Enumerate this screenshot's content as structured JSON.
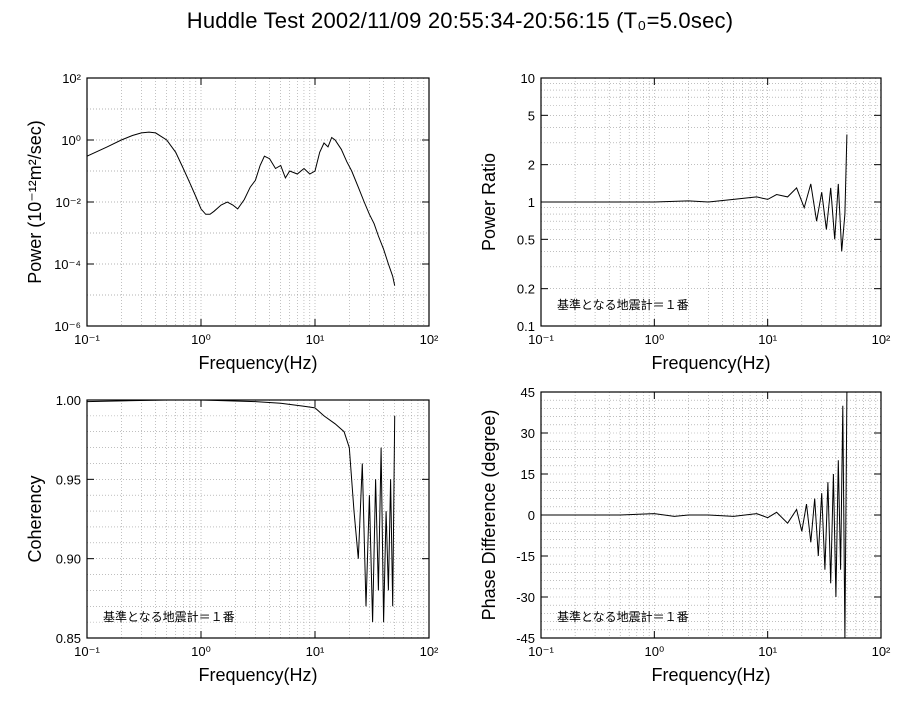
{
  "title": "Huddle Test  2002/11/09  20:55:34-20:56:15 (T₀=5.0sec)",
  "chart_data": [
    {
      "type": "line",
      "name": "power-spectrum",
      "xlabel": "Frequency(Hz)",
      "ylabel": "Power (10⁻¹²m²/sec)",
      "xscale": "log",
      "yscale": "log",
      "xlim": [
        0.1,
        100
      ],
      "ylim": [
        1e-06,
        100
      ],
      "grid": true,
      "annotation": "",
      "xtick_labels": [
        "10⁻¹",
        "10⁰",
        "10¹",
        "10²"
      ],
      "ytick_labels": [
        "10⁻⁶",
        "10⁻⁴",
        "10⁻²",
        "10⁰",
        "10²"
      ],
      "series": [
        {
          "x": [
            0.1,
            0.15,
            0.2,
            0.25,
            0.3,
            0.35,
            0.4,
            0.5,
            0.6,
            0.7,
            0.8,
            0.9,
            1.0,
            1.1,
            1.2,
            1.3,
            1.5,
            1.7,
            1.9,
            2.1,
            2.4,
            2.7,
            3.0,
            3.3,
            3.6,
            4.0,
            4.5,
            5.0,
            5.5,
            6.0,
            7.0,
            8.0,
            9.0,
            10.0,
            11.0,
            12.0,
            13.0,
            14.0,
            15.0,
            17.0,
            19.0,
            21.0,
            24.0,
            27.0,
            30.0,
            33.0,
            36.0,
            40.0,
            44.0,
            48.0,
            50.0
          ],
          "y": [
            0.3,
            0.6,
            1.0,
            1.4,
            1.7,
            1.8,
            1.7,
            1.0,
            0.4,
            0.12,
            0.04,
            0.015,
            0.006,
            0.004,
            0.004,
            0.005,
            0.008,
            0.01,
            0.008,
            0.006,
            0.012,
            0.03,
            0.05,
            0.15,
            0.3,
            0.25,
            0.12,
            0.15,
            0.06,
            0.1,
            0.08,
            0.12,
            0.08,
            0.1,
            0.4,
            0.8,
            0.6,
            1.2,
            1.0,
            0.5,
            0.2,
            0.1,
            0.03,
            0.01,
            0.004,
            0.002,
            0.0008,
            0.0003,
            0.0001,
            4e-05,
            2e-05
          ]
        }
      ]
    },
    {
      "type": "line",
      "name": "power-ratio",
      "xlabel": "Frequency(Hz)",
      "ylabel": "Power Ratio",
      "xscale": "log",
      "yscale": "log",
      "xlim": [
        0.1,
        100
      ],
      "ylim": [
        0.1,
        10
      ],
      "grid": true,
      "annotation": "基準となる地震計＝１番",
      "xtick_labels": [
        "10⁻¹",
        "10⁰",
        "10¹",
        "10²"
      ],
      "ytick_labels": [
        "0.1",
        "0.2",
        "0.5",
        "1",
        "2",
        "5",
        "10"
      ],
      "ytick_values": [
        0.1,
        0.2,
        0.5,
        1,
        2,
        5,
        10
      ],
      "series": [
        {
          "x": [
            0.1,
            0.3,
            1.0,
            2.0,
            3.0,
            5.0,
            8.0,
            10.0,
            12.0,
            15.0,
            18.0,
            21.0,
            24.0,
            27.0,
            30.0,
            33.0,
            36.0,
            39.0,
            42.0,
            45.0,
            48.0,
            50.0
          ],
          "y": [
            1.0,
            1.0,
            1.0,
            1.02,
            1.0,
            1.05,
            1.1,
            1.05,
            1.15,
            1.1,
            1.3,
            0.9,
            1.4,
            0.7,
            1.2,
            0.6,
            1.3,
            0.5,
            1.4,
            0.4,
            0.8,
            3.5
          ]
        }
      ]
    },
    {
      "type": "line",
      "name": "coherency",
      "xlabel": "Frequency(Hz)",
      "ylabel": "Coherency",
      "xscale": "log",
      "yscale": "linear",
      "xlim": [
        0.1,
        100
      ],
      "ylim": [
        0.85,
        1.0
      ],
      "grid": true,
      "annotation": "基準となる地震計＝１番",
      "xtick_labels": [
        "10⁻¹",
        "10⁰",
        "10¹",
        "10²"
      ],
      "ytick_labels": [
        "0.85",
        "0.90",
        "0.95",
        "1.00"
      ],
      "ytick_values": [
        0.85,
        0.9,
        0.95,
        1.0
      ],
      "series": [
        {
          "x": [
            0.1,
            0.5,
            1.0,
            3.0,
            5.0,
            8.0,
            10.0,
            12.0,
            15.0,
            18.0,
            20.0,
            22.0,
            24.0,
            26.0,
            28.0,
            30.0,
            32.0,
            34.0,
            36.0,
            38.0,
            40.0,
            42.0,
            44.0,
            46.0,
            48.0,
            50.0
          ],
          "y": [
            0.999,
            1.0,
            1.0,
            0.999,
            0.998,
            0.996,
            0.995,
            0.99,
            0.985,
            0.98,
            0.97,
            0.93,
            0.9,
            0.96,
            0.87,
            0.94,
            0.86,
            0.95,
            0.88,
            0.97,
            0.86,
            0.93,
            0.88,
            0.95,
            0.87,
            0.99
          ]
        }
      ]
    },
    {
      "type": "line",
      "name": "phase-difference",
      "xlabel": "Frequency(Hz)",
      "ylabel": "Phase Difference (degree)",
      "xscale": "log",
      "yscale": "linear",
      "xlim": [
        0.1,
        100
      ],
      "ylim": [
        -45,
        45
      ],
      "grid": true,
      "annotation": "基準となる地震計＝１番",
      "xtick_labels": [
        "10⁻¹",
        "10⁰",
        "10¹",
        "10²"
      ],
      "ytick_labels": [
        "-45",
        "-30",
        "-15",
        "0",
        "15",
        "30",
        "45"
      ],
      "ytick_values": [
        -45,
        -30,
        -15,
        0,
        15,
        30,
        45
      ],
      "series": [
        {
          "x": [
            0.1,
            0.5,
            1.0,
            1.5,
            2.0,
            3.0,
            5.0,
            8.0,
            10.0,
            12.0,
            15.0,
            18.0,
            20.0,
            22.0,
            24.0,
            26.0,
            28.0,
            30.0,
            32.0,
            34.0,
            36.0,
            38.0,
            40.0,
            42.0,
            44.0,
            46.0,
            48.0,
            50.0
          ],
          "y": [
            0,
            0,
            0.5,
            -0.5,
            0,
            0,
            -0.5,
            0.5,
            -1,
            1,
            -3,
            2,
            -6,
            4,
            -10,
            6,
            -15,
            8,
            -20,
            12,
            -25,
            15,
            -30,
            20,
            -20,
            40,
            -45,
            45
          ]
        }
      ]
    }
  ]
}
